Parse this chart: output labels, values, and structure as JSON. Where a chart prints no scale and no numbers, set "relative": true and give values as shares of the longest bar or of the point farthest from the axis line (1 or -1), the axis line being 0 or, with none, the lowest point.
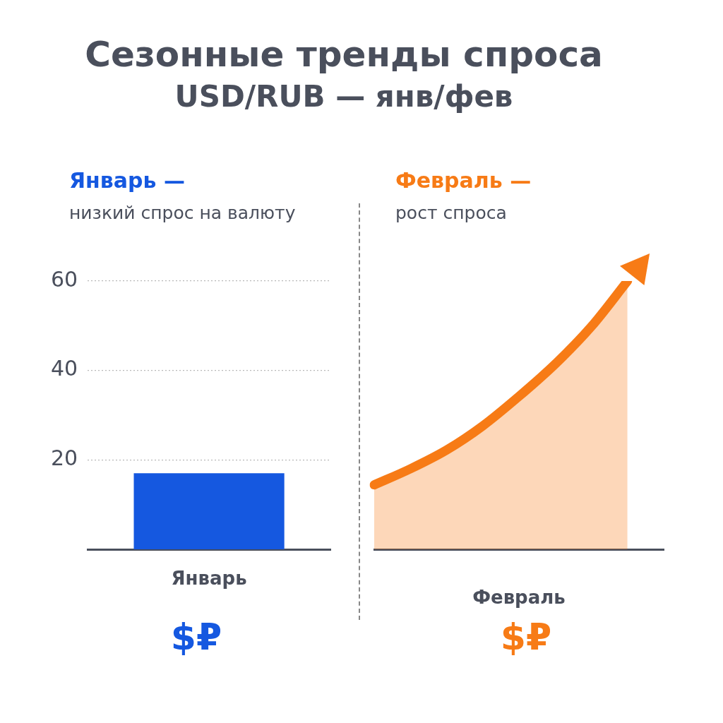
{
  "chart_data": [
    {
      "type": "bar",
      "title": "Сезонные тренды спроса",
      "subtitle": "USD/RUB — янв/фев",
      "annotations": [
        "Январь —",
        "низкий спрос на валюту",
        "$₽"
      ],
      "categories": [
        "Январь"
      ],
      "series": [
        {
          "color": "#1558e0",
          "values": [
            17
          ]
        }
      ],
      "ylim": [
        0,
        60
      ],
      "yticks": [
        20,
        40,
        60
      ],
      "grid": "y"
    },
    {
      "type": "area",
      "annotations": [
        "Февраль —",
        "рост спроса",
        "$₽"
      ],
      "xlabel": "Февраль",
      "categories": [
        null,
        null,
        null,
        null,
        null,
        null,
        null,
        null
      ],
      "series": [
        {
          "color": "#f77b16",
          "values": [
            0.24,
            0.3,
            0.37,
            0.46,
            0.57,
            0.69,
            0.83,
            1
          ]
        }
      ],
      "relative": true
    }
  ]
}
